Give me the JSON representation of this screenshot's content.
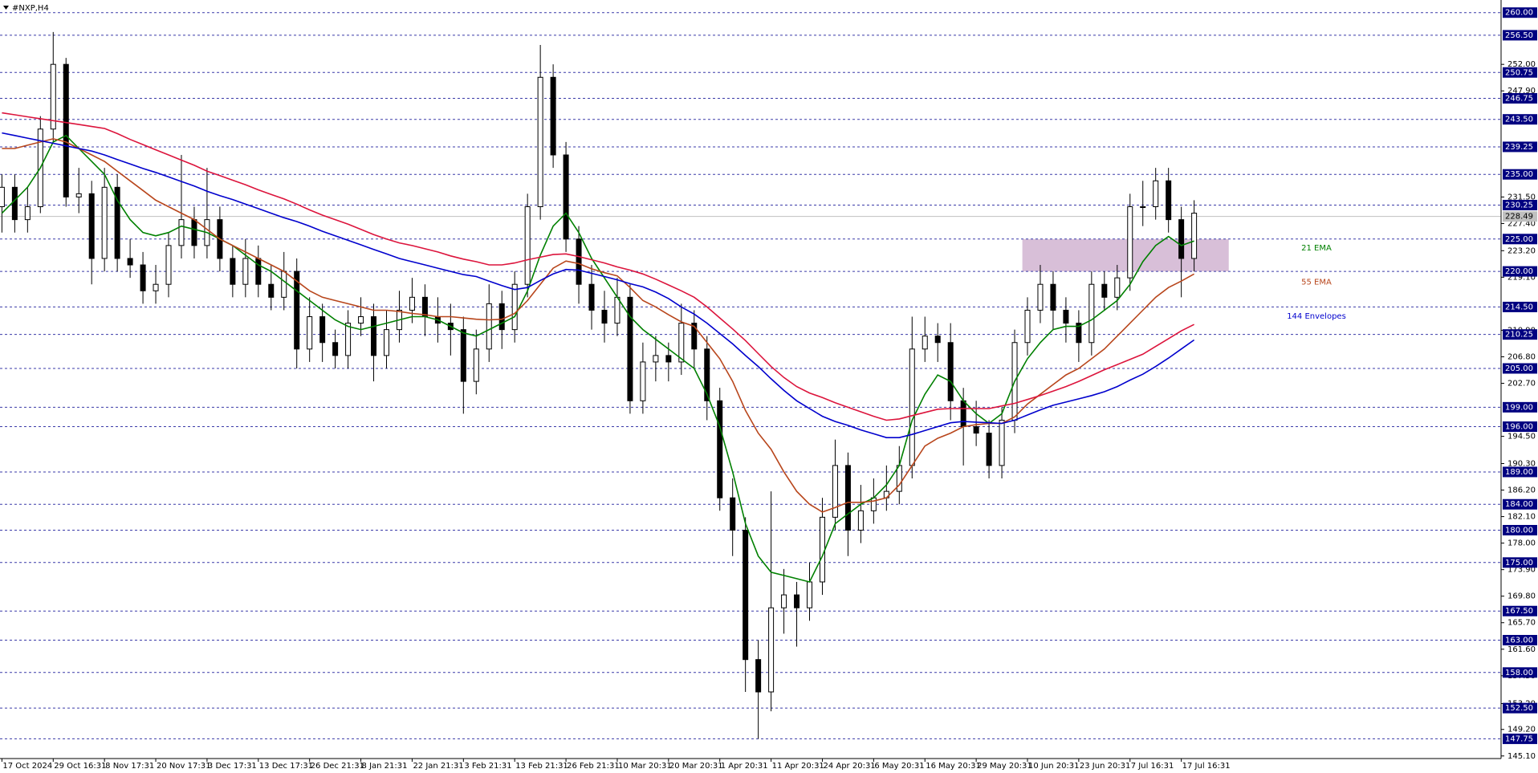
{
  "chart_data": {
    "type": "candlestick",
    "title": "#NXP,H4",
    "categories": [
      "17 Oct 2024",
      null,
      null,
      null,
      "29 Oct 16:31",
      null,
      null,
      null,
      "8 Nov 17:31",
      null,
      null,
      null,
      "20 Nov 17:31",
      null,
      null,
      null,
      "3 Dec 17:31",
      null,
      null,
      null,
      "13 Dec 17:31",
      null,
      null,
      null,
      "26 Dec 21:31",
      null,
      null,
      null,
      "8 Jan 21:31",
      null,
      null,
      null,
      "22 Jan 21:31",
      null,
      null,
      null,
      "3 Feb 21:31",
      null,
      null,
      null,
      "13 Feb 21:31",
      null,
      null,
      null,
      "26 Feb 21:31",
      null,
      null,
      null,
      "10 Mar 20:31",
      null,
      null,
      null,
      "20 Mar 20:31",
      null,
      null,
      null,
      "1 Apr 20:31",
      null,
      null,
      null,
      "11 Apr 20:31",
      null,
      null,
      null,
      "24 Apr 20:31",
      null,
      null,
      null,
      "6 May 20:31",
      null,
      null,
      null,
      "16 May 20:31",
      null,
      null,
      null,
      "29 May 20:31",
      null,
      null,
      null,
      "10 Jun 20:31",
      null,
      null,
      null,
      "23 Jun 20:31",
      null,
      null,
      null,
      "7 Jul 16:31",
      null,
      null,
      null,
      "17 Jul 16:31",
      null
    ],
    "open": [
      230,
      233,
      228,
      230,
      242,
      252,
      231.5,
      232,
      222,
      233,
      222,
      221,
      217,
      218,
      224,
      228,
      224,
      228,
      222,
      218,
      222,
      218,
      216,
      220,
      208,
      213,
      209,
      207,
      212,
      213,
      207,
      211,
      214,
      216,
      213,
      212,
      211,
      203,
      208,
      215,
      211,
      218,
      230,
      250,
      238,
      225,
      218,
      214,
      212,
      216,
      200,
      206,
      207,
      206,
      212,
      208,
      200,
      185,
      180,
      160,
      155,
      168,
      170,
      168,
      172,
      182,
      190,
      180,
      183,
      185,
      186,
      190,
      208,
      210,
      209,
      200,
      196,
      195,
      190,
      197,
      209,
      214,
      218,
      214,
      212,
      209,
      218,
      216,
      219,
      230,
      230,
      234,
      228,
      222
    ],
    "high": [
      235,
      235,
      233,
      244,
      257,
      253,
      236,
      234,
      236,
      235,
      225,
      223,
      221,
      226,
      238,
      230,
      236,
      230,
      224,
      225,
      224,
      221,
      223,
      222,
      216,
      215,
      211,
      214,
      216,
      215,
      214,
      217,
      219,
      218,
      216,
      215,
      213,
      211,
      218,
      217,
      220,
      232,
      255,
      252,
      240,
      227,
      221,
      217,
      219,
      218,
      209,
      210,
      209,
      215,
      214,
      210,
      202,
      188,
      182,
      163,
      186,
      174,
      172,
      175,
      185,
      194,
      192,
      187,
      188,
      190,
      193,
      213,
      213,
      212,
      212,
      202,
      200,
      197,
      199,
      211,
      216,
      221,
      220,
      216,
      214,
      220,
      220,
      221,
      232,
      234,
      236,
      236,
      230,
      231
    ],
    "low": [
      226,
      226,
      226,
      229,
      240,
      230,
      229,
      218,
      220,
      220,
      219,
      215,
      215,
      216,
      222,
      222,
      222,
      220,
      216,
      216,
      216,
      214,
      214,
      205,
      206,
      206,
      205,
      205,
      210,
      203,
      205,
      209,
      212,
      210,
      209,
      207,
      198,
      201,
      206,
      208,
      209,
      216,
      228,
      236,
      223,
      215,
      211,
      209,
      210,
      198,
      198,
      203,
      203,
      204,
      205,
      197,
      183,
      176,
      155,
      147.75,
      152,
      164,
      162,
      166,
      170,
      180,
      176,
      178,
      181,
      183,
      184,
      188,
      206,
      206,
      197,
      190,
      193,
      188,
      188,
      195,
      207,
      212,
      211,
      209,
      206,
      207,
      214,
      214,
      217,
      227,
      228,
      226,
      216,
      220
    ],
    "close": [
      233,
      228,
      230,
      242,
      252,
      231.5,
      232,
      222,
      233,
      222,
      221,
      217,
      218,
      224,
      228,
      224,
      228,
      222,
      218,
      222,
      218,
      216,
      220,
      208,
      213,
      209,
      207,
      212,
      213,
      207,
      211,
      214,
      216,
      213,
      212,
      211,
      203,
      208,
      215,
      211,
      218,
      230,
      250,
      238,
      225,
      218,
      214,
      212,
      216,
      200,
      206,
      207,
      206,
      212,
      208,
      200,
      185,
      180,
      160,
      155,
      168,
      170,
      168,
      172,
      182,
      190,
      180,
      183,
      185,
      186,
      190,
      208,
      210,
      209,
      200,
      196,
      195,
      190,
      197,
      209,
      214,
      218,
      214,
      212,
      209,
      218,
      216,
      219,
      230,
      230,
      234,
      228,
      222,
      229
    ],
    "up_color": "#ffffff",
    "down_color": "#000000",
    "wick_color": "#000000",
    "series": [
      {
        "name": "21 EMA",
        "color": "#008000",
        "values": [
          229,
          231,
          233,
          236,
          240,
          241,
          239,
          237,
          235,
          231,
          228,
          226,
          225.5,
          226,
          227,
          226.5,
          226,
          225,
          224,
          222.5,
          221,
          220,
          218.5,
          217,
          215.5,
          214,
          212.5,
          211.5,
          211,
          211.5,
          212,
          212.5,
          213,
          213,
          212.5,
          211.5,
          210.5,
          210,
          211,
          212,
          213,
          217,
          222.5,
          227,
          229,
          226,
          222,
          219,
          216,
          213,
          211,
          209.5,
          208,
          206.5,
          205,
          201,
          196,
          189,
          181,
          176,
          173.5,
          173,
          172.5,
          172,
          176,
          181,
          182.5,
          184,
          185,
          187,
          190,
          197,
          201,
          204,
          203,
          200,
          198,
          196.5,
          198,
          203,
          206.5,
          209,
          211,
          211.5,
          211.5,
          212.5,
          214,
          215.5,
          218,
          221.5,
          224,
          225.4,
          224,
          224.7
        ]
      },
      {
        "name": "55 EMA",
        "color": "#b8461c",
        "values": [
          239,
          239,
          239.5,
          240,
          240.5,
          240,
          239,
          238,
          237,
          235.5,
          234,
          232.5,
          231,
          230,
          229,
          228,
          226.5,
          225,
          224,
          223,
          222,
          221,
          220,
          218.5,
          217,
          216,
          215.5,
          215,
          214.5,
          214,
          214,
          213.8,
          213.5,
          213.3,
          213,
          213,
          212.8,
          212.6,
          212.5,
          212.6,
          213.5,
          215.5,
          218,
          220.5,
          221.6,
          221.2,
          220.4,
          219.8,
          219.3,
          217.5,
          215.5,
          214.5,
          213.3,
          212.2,
          211.5,
          209,
          206.5,
          203,
          198.5,
          195,
          192.5,
          189,
          186,
          184,
          182.8,
          183.5,
          184.3,
          184.3,
          184.5,
          185,
          187,
          190,
          193,
          194.2,
          195,
          196,
          196.3,
          196.5,
          196.5,
          197.5,
          199.5,
          201,
          202.5,
          204,
          205,
          206.5,
          208,
          210,
          212,
          214,
          216,
          217.5,
          218.5,
          219.6
        ]
      },
      {
        "color": "#dc143c",
        "values": [
          244.5,
          244.2,
          243.9,
          243.6,
          243.3,
          243,
          242.7,
          242.4,
          242.1,
          241.3,
          240.4,
          239.6,
          238.8,
          238,
          237.2,
          236.4,
          235.5,
          234.8,
          234.1,
          233.4,
          232.6,
          231.9,
          231.2,
          230.4,
          229.5,
          228.7,
          228,
          227.3,
          226.5,
          225.7,
          225,
          224.4,
          224,
          223.5,
          223,
          222.4,
          221.9,
          221.5,
          221,
          221,
          221.3,
          221.8,
          222.2,
          222.6,
          222.7,
          222.3,
          221.8,
          221.3,
          220.7,
          220.2,
          219.6,
          218.8,
          217.9,
          217,
          216,
          214.5,
          212.8,
          211.1,
          209.3,
          207.3,
          205.3,
          203.6,
          202.2,
          201.2,
          200.5,
          199.7,
          199,
          198.3,
          197.6,
          197,
          197.2,
          197.7,
          198.2,
          198.7,
          198.8,
          198.8,
          198.8,
          198.8,
          199.2,
          199.6,
          200.2,
          200.8,
          201.5,
          202.2,
          203,
          203.9,
          204.8,
          205.6,
          206.4,
          207.2,
          208.4,
          209.6,
          210.8,
          211.8
        ]
      },
      {
        "name": "144 Envelopes",
        "color": "#0000cd",
        "values": [
          241.4,
          241,
          240.6,
          240.2,
          239.8,
          239.4,
          239,
          238.6,
          238,
          237.3,
          236.6,
          235.9,
          235.3,
          234.6,
          233.9,
          233.2,
          232.4,
          231.7,
          231.1,
          230.4,
          229.7,
          229,
          228.3,
          227.7,
          227,
          226.2,
          225.5,
          224.8,
          224.1,
          223.4,
          222.7,
          222,
          221.5,
          221,
          220.5,
          220,
          219.5,
          219.2,
          218.5,
          217.8,
          217.2,
          217.5,
          218.6,
          219.6,
          220.3,
          220.2,
          219.7,
          219.2,
          218.7,
          218.1,
          217.6,
          216.8,
          215.8,
          214.5,
          213.4,
          212,
          210.4,
          208.8,
          207,
          205.3,
          203.4,
          201.6,
          200,
          198.8,
          197.6,
          196.8,
          196.2,
          195.5,
          194.9,
          194.3,
          194.3,
          194.8,
          195.4,
          196,
          196.6,
          196.8,
          196.7,
          196.6,
          196.5,
          197,
          197.8,
          198.6,
          199.3,
          199.8,
          200.3,
          200.8,
          201.4,
          202.2,
          203.2,
          204.1,
          205.3,
          206.6,
          208,
          209.4
        ]
      }
    ],
    "ylim": [
      144.7,
      261.7
    ],
    "yticks": [
      {
        "value": 252,
        "label": "252.00"
      },
      {
        "value": 247.9,
        "label": "247.90"
      },
      {
        "value": 231.5,
        "label": "231.50"
      },
      {
        "value": 227.4,
        "label": "227.40"
      },
      {
        "value": 223.2,
        "label": "223.20"
      },
      {
        "value": 219.1,
        "label": "219.10"
      },
      {
        "value": 210.9,
        "label": "210.90"
      },
      {
        "value": 206.8,
        "label": "206.80"
      },
      {
        "value": 202.7,
        "label": "202.70"
      },
      {
        "value": 194.5,
        "label": "194.50"
      },
      {
        "value": 190.3,
        "label": "190.30"
      },
      {
        "value": 186.2,
        "label": "186.20"
      },
      {
        "value": 182.1,
        "label": "182.10"
      },
      {
        "value": 178,
        "label": "178.00"
      },
      {
        "value": 173.9,
        "label": "173.90"
      },
      {
        "value": 169.8,
        "label": "169.80"
      },
      {
        "value": 165.7,
        "label": "165.70"
      },
      {
        "value": 161.6,
        "label": "161.60"
      },
      {
        "value": 157.5,
        "label": "157.50"
      },
      {
        "value": 153.2,
        "label": "153.20"
      },
      {
        "value": 149.2,
        "label": "149.20"
      },
      {
        "value": 145.1,
        "label": "145.10"
      }
    ],
    "levels": [
      {
        "value": 260,
        "label": "260.00"
      },
      {
        "value": 256.5,
        "label": "256.50"
      },
      {
        "value": 250.75,
        "label": "250.75"
      },
      {
        "value": 246.75,
        "label": "246.75"
      },
      {
        "value": 243.5,
        "label": "243.50"
      },
      {
        "value": 239.25,
        "label": "239.25"
      },
      {
        "value": 235,
        "label": "235.00"
      },
      {
        "value": 230.25,
        "label": "230.25"
      },
      {
        "value": 225,
        "label": "225.00"
      },
      {
        "value": 220,
        "label": "220.00"
      },
      {
        "value": 214.5,
        "label": "214.50"
      },
      {
        "value": 210.25,
        "label": "210.25"
      },
      {
        "value": 205,
        "label": "205.00"
      },
      {
        "value": 199,
        "label": "199.00"
      },
      {
        "value": 196,
        "label": "196.00"
      },
      {
        "value": 189,
        "label": "189.00"
      },
      {
        "value": 184,
        "label": "184.00"
      },
      {
        "value": 180,
        "label": "180.00"
      },
      {
        "value": 175,
        "label": "175.00"
      },
      {
        "value": 167.5,
        "label": "167.50"
      },
      {
        "value": 163,
        "label": "163.00"
      },
      {
        "value": 158,
        "label": "158.00"
      },
      {
        "value": 152.5,
        "label": "152.50"
      },
      {
        "value": 147.75,
        "label": "147.75"
      }
    ],
    "level_color": "#000080",
    "last_price": {
      "value": 228.49,
      "label": "228.49"
    },
    "zone": {
      "ylim": [
        220,
        225
      ],
      "color": "#d8bfd8"
    }
  }
}
